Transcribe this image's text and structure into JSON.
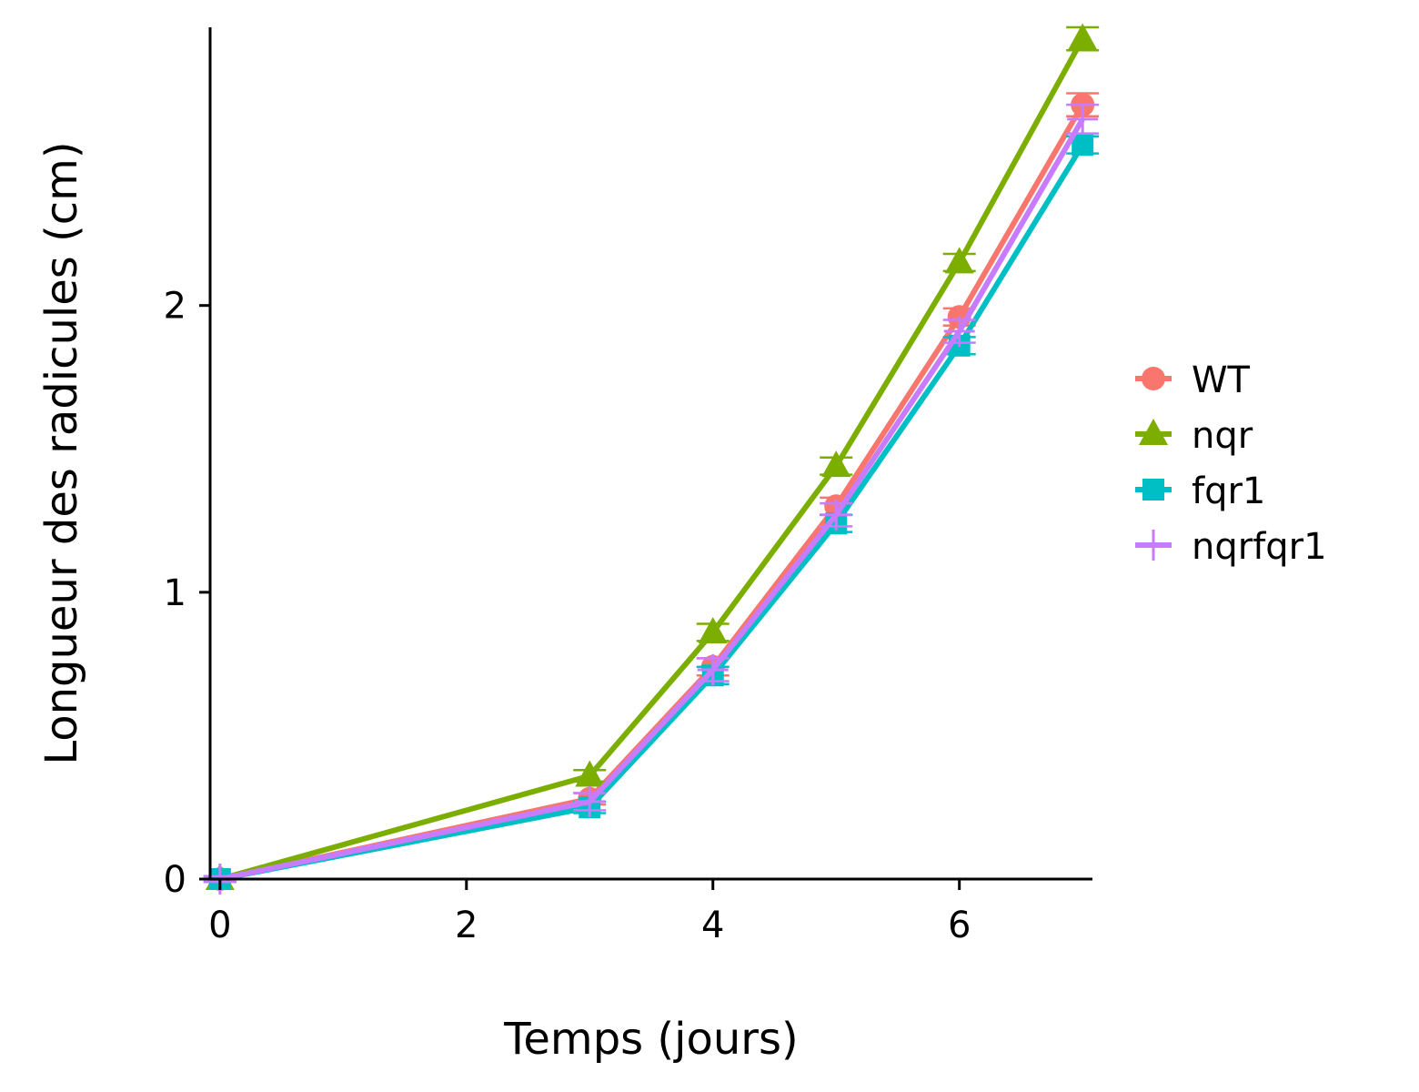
{
  "chart_data": {
    "type": "line",
    "title": "",
    "xlabel": "Temps (jours)",
    "ylabel": "Longueur des radicules (cm)",
    "xlim": [
      -0.08,
      7.08
    ],
    "ylim": [
      0,
      2.97
    ],
    "xticks": [
      0,
      2,
      4,
      6
    ],
    "xtick_labels": [
      "0",
      "2",
      "4",
      "6"
    ],
    "yticks": [
      0,
      1,
      2
    ],
    "ytick_labels": [
      "0",
      "1",
      "2"
    ],
    "grid": false,
    "legend_position": "right",
    "x": [
      0,
      3,
      4,
      5,
      6,
      7
    ],
    "series": [
      {
        "name": "WT",
        "color": "#F8766D",
        "marker": "circle",
        "values": [
          0,
          0.28,
          0.74,
          1.3,
          1.96,
          2.7
        ],
        "error": [
          0.01,
          0.02,
          0.03,
          0.03,
          0.03,
          0.04
        ]
      },
      {
        "name": "nqr",
        "color": "#7CAE00",
        "marker": "triangle",
        "values": [
          0,
          0.36,
          0.86,
          1.44,
          2.15,
          2.93
        ],
        "error": [
          0.01,
          0.02,
          0.03,
          0.03,
          0.03,
          0.04
        ]
      },
      {
        "name": "fqr1",
        "color": "#00BFC4",
        "marker": "square",
        "values": [
          0,
          0.25,
          0.71,
          1.24,
          1.86,
          2.56
        ],
        "error": [
          0.01,
          0.02,
          0.03,
          0.03,
          0.03,
          0.03
        ]
      },
      {
        "name": "nqrfqr1",
        "color": "#C77CFF",
        "marker": "plus",
        "values": [
          0,
          0.27,
          0.73,
          1.27,
          1.91,
          2.65
        ],
        "error": [
          0.01,
          0.03,
          0.04,
          0.04,
          0.04,
          0.05
        ]
      }
    ]
  }
}
